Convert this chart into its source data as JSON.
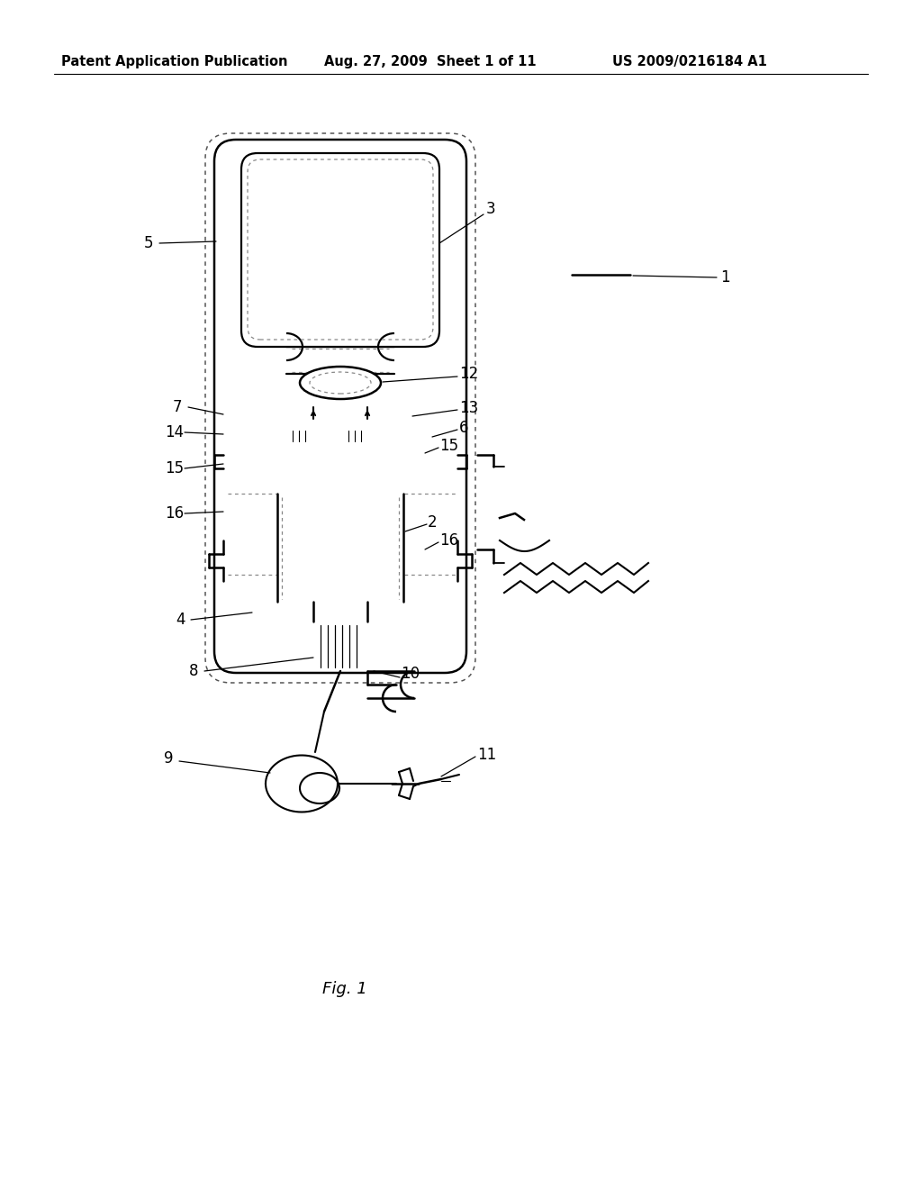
{
  "bg_color": "#ffffff",
  "header_left": "Patent Application Publication",
  "header_mid": "Aug. 27, 2009  Sheet 1 of 11",
  "header_right": "US 2009/0216184 A1",
  "caption": "Fig. 1"
}
